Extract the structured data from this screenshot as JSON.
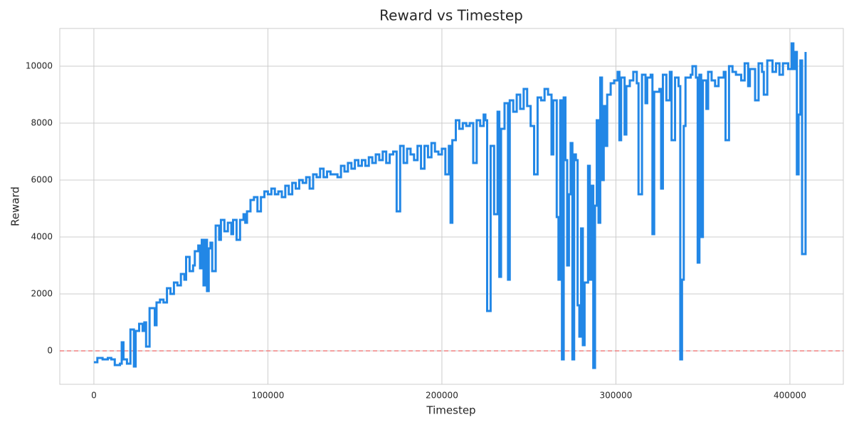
{
  "chart_data": {
    "type": "line",
    "title": "Reward vs Timestep",
    "x_label": "Timestep",
    "y_label": "Reward",
    "xlim": [
      -19600,
      430700
    ],
    "ylim": [
      -1175,
      11325
    ],
    "xticks": [
      0,
      100000,
      200000,
      300000,
      400000
    ],
    "yticks": [
      0,
      2000,
      4000,
      6000,
      8000,
      10000
    ],
    "grid": true,
    "step": true,
    "hline": {
      "y": 0,
      "color": "#f08080",
      "style": "dashed"
    },
    "series": [
      {
        "name": "Reward",
        "color": "#2287e6",
        "x": [
          0,
          2000,
          5000,
          8000,
          10000,
          12000,
          15000,
          16000,
          17000,
          19000,
          21000,
          23000,
          24000,
          26000,
          28000,
          29000,
          30000,
          32000,
          35000,
          36000,
          38000,
          40000,
          42000,
          44000,
          46000,
          48000,
          50000,
          52000,
          53000,
          55000,
          57000,
          58000,
          60000,
          61000,
          62000,
          63000,
          64000,
          65000,
          66000,
          67000,
          68000,
          70000,
          72000,
          73000,
          75000,
          77000,
          79000,
          80000,
          82000,
          84000,
          86000,
          87000,
          88000,
          90000,
          92000,
          94000,
          96000,
          98000,
          100000,
          102000,
          104000,
          106000,
          108000,
          110000,
          112000,
          114000,
          116000,
          118000,
          120000,
          122000,
          124000,
          126000,
          128000,
          130000,
          132000,
          134000,
          136000,
          138000,
          140000,
          142000,
          144000,
          146000,
          148000,
          150000,
          152000,
          154000,
          156000,
          158000,
          160000,
          162000,
          164000,
          166000,
          168000,
          170000,
          172000,
          174000,
          176000,
          178000,
          180000,
          182000,
          184000,
          186000,
          188000,
          190000,
          192000,
          194000,
          196000,
          198000,
          200000,
          202000,
          204000,
          205000,
          206000,
          208000,
          210000,
          212000,
          214000,
          216000,
          218000,
          220000,
          222000,
          224000,
          225000,
          226000,
          228000,
          230000,
          232000,
          233000,
          234000,
          236000,
          238000,
          239000,
          241000,
          243000,
          245000,
          247000,
          249000,
          251000,
          253000,
          255000,
          257000,
          259000,
          261000,
          263000,
          264000,
          266000,
          267000,
          268000,
          269000,
          270000,
          271000,
          272000,
          273000,
          274000,
          275000,
          276000,
          277000,
          278000,
          279000,
          280000,
          281000,
          282000,
          284000,
          285000,
          286000,
          287000,
          288000,
          289000,
          290000,
          291000,
          292000,
          293000,
          294000,
          295000,
          297000,
          299000,
          301000,
          302000,
          303000,
          305000,
          306000,
          308000,
          310000,
          312000,
          313000,
          315000,
          317000,
          318000,
          320000,
          321000,
          322000,
          325000,
          326000,
          327000,
          329000,
          331000,
          332000,
          334000,
          336000,
          337000,
          338000,
          339000,
          340000,
          343000,
          344000,
          346000,
          347000,
          348000,
          349000,
          350000,
          352000,
          353000,
          355000,
          357000,
          359000,
          362000,
          363000,
          365000,
          367000,
          369000,
          372000,
          374000,
          376000,
          377000,
          380000,
          382000,
          384000,
          385000,
          387000,
          390000,
          392000,
          394000,
          396000,
          399000,
          401000,
          402000,
          403000,
          404000,
          405000,
          406000,
          407000,
          409000
        ],
        "values": [
          -400,
          -250,
          -300,
          -250,
          -300,
          -500,
          -450,
          300,
          -300,
          -450,
          750,
          -550,
          700,
          950,
          700,
          1000,
          150,
          1500,
          900,
          1700,
          1800,
          1700,
          2200,
          2000,
          2400,
          2300,
          2700,
          2500,
          3300,
          2800,
          3000,
          3500,
          3700,
          2900,
          3900,
          2300,
          3900,
          2100,
          3600,
          3800,
          2800,
          4400,
          3900,
          4600,
          4200,
          4500,
          4100,
          4600,
          3900,
          4600,
          4800,
          4500,
          4900,
          5300,
          5400,
          4900,
          5400,
          5600,
          5500,
          5700,
          5500,
          5600,
          5400,
          5800,
          5500,
          5900,
          5700,
          6000,
          5900,
          6100,
          5700,
          6200,
          6100,
          6400,
          6100,
          6300,
          6200,
          6200,
          6100,
          6500,
          6300,
          6600,
          6400,
          6700,
          6500,
          6700,
          6500,
          6800,
          6600,
          6900,
          6700,
          7000,
          6600,
          6900,
          7000,
          4900,
          7200,
          6600,
          7100,
          6900,
          6700,
          7200,
          6400,
          7200,
          6800,
          7300,
          7000,
          6900,
          7100,
          6200,
          7200,
          4500,
          7400,
          8100,
          7800,
          8000,
          7900,
          8000,
          6600,
          8100,
          7900,
          8300,
          8100,
          1400,
          7200,
          4800,
          8400,
          2600,
          7800,
          8700,
          2500,
          8800,
          8400,
          9000,
          8500,
          9200,
          8600,
          7900,
          6200,
          8900,
          8800,
          9200,
          9000,
          6900,
          8800,
          4700,
          2500,
          8800,
          -300,
          8900,
          6700,
          3000,
          5500,
          7300,
          -300,
          6900,
          6700,
          1600,
          500,
          4300,
          200,
          2400,
          6500,
          2500,
          5800,
          -600,
          5100,
          8100,
          4500,
          9600,
          6000,
          8600,
          7200,
          9000,
          9400,
          9500,
          9800,
          7400,
          9600,
          7600,
          9300,
          9500,
          9800,
          9400,
          5500,
          9700,
          8700,
          9600,
          9700,
          4100,
          9100,
          9200,
          5700,
          9700,
          8800,
          9800,
          7400,
          9600,
          9300,
          -300,
          2500,
          7900,
          9600,
          9700,
          10000,
          9600,
          3100,
          9700,
          4000,
          9500,
          8500,
          9800,
          9500,
          9300,
          9600,
          9800,
          7400,
          10000,
          9800,
          9700,
          9500,
          10100,
          9300,
          9900,
          8800,
          10100,
          9800,
          9000,
          10200,
          9800,
          10100,
          9700,
          10100,
          9900,
          10800,
          9900,
          10500,
          6200,
          8300,
          10200,
          3400,
          10500
        ]
      }
    ]
  }
}
